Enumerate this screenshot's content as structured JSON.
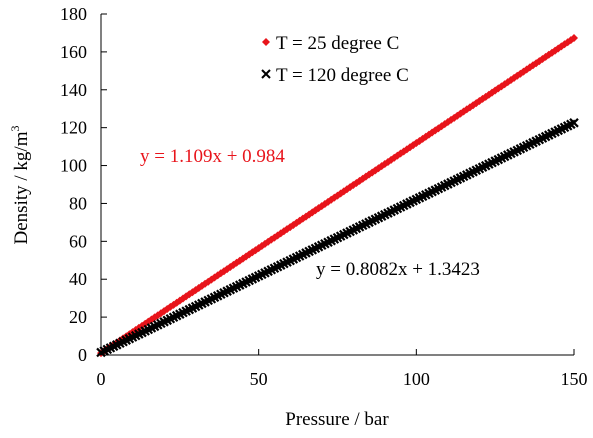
{
  "chart_data": {
    "type": "scatter",
    "title": "",
    "xlabel": "Pressure / bar",
    "ylabel_main": "Density  / kg/m",
    "ylabel_sup": "3",
    "xlim": [
      0,
      150
    ],
    "ylim": [
      0,
      180
    ],
    "xticks": [
      0,
      50,
      100,
      150
    ],
    "yticks": [
      0,
      20,
      40,
      60,
      80,
      100,
      120,
      140,
      160,
      180
    ],
    "grid": false,
    "legend_position": "top-right",
    "series": [
      {
        "name": "T = 25 degree C",
        "marker": "diamond",
        "color": "#e8141b",
        "slope": 1.109,
        "intercept": 0.984,
        "x_range": [
          0,
          150
        ],
        "point_count": 150,
        "trendline_label": "y = 1.109x + 0.984"
      },
      {
        "name": "T = 120 degree C",
        "marker": "x",
        "color": "#000000",
        "slope": 0.8082,
        "intercept": 1.3423,
        "x_range": [
          0,
          150
        ],
        "point_count": 150,
        "trendline_label": "y = 0.8082x + 1.3423"
      }
    ]
  }
}
